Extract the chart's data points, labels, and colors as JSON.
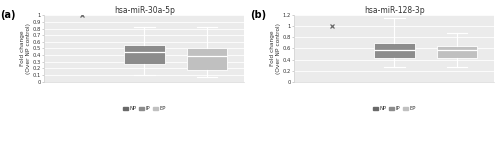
{
  "panel_a": {
    "title": "hsa-miR-30a-5p",
    "ylabel": "Fold change\n(Over NP control)",
    "ylim": [
      0,
      1.0
    ],
    "yticks": [
      0,
      0.1,
      0.2,
      0.3,
      0.4,
      0.5,
      0.6,
      0.7,
      0.8,
      0.9,
      1
    ],
    "ytick_labels": [
      "0",
      "0.1",
      "0.2",
      "0.3",
      "0.4",
      "0.5",
      "0.6",
      "0.7",
      "0.8",
      "0.9",
      "1"
    ],
    "NP": {
      "x": 1,
      "median": 1.0,
      "q1": 1.0,
      "q3": 1.0,
      "whislo": 1.0,
      "whishi": 1.0
    },
    "IP": {
      "x": 2,
      "median": 0.44,
      "q1": 0.27,
      "q3": 0.56,
      "whislo": 0.1,
      "whishi": 0.83
    },
    "EP": {
      "x": 3,
      "median": 0.39,
      "q1": 0.17,
      "q3": 0.5,
      "whislo": 0.07,
      "whishi": 0.83
    }
  },
  "panel_b": {
    "title": "hsa-miR-128-3p",
    "ylabel": "Fold change\n(Over NP control)",
    "ylim": [
      0,
      1.2
    ],
    "yticks": [
      0,
      0.2,
      0.4,
      0.6,
      0.8,
      1.0,
      1.2
    ],
    "ytick_labels": [
      "0",
      "0.2",
      "0.4",
      "0.6",
      "0.8",
      "1",
      "1.2"
    ],
    "NP": {
      "x": 1,
      "median": 1.0,
      "q1": 1.0,
      "q3": 1.0,
      "whislo": 1.0,
      "whishi": 1.0
    },
    "IP": {
      "x": 2,
      "median": 0.57,
      "q1": 0.43,
      "q3": 0.7,
      "whislo": 0.27,
      "whishi": 1.15
    },
    "EP": {
      "x": 3,
      "median": 0.57,
      "q1": 0.43,
      "q3": 0.65,
      "whislo": 0.27,
      "whishi": 0.88
    }
  },
  "color_NP": "#696969",
  "color_IP": "#8c8c8c",
  "color_EP": "#c0c0c0",
  "background": "#ebebeb",
  "grid_color": "#ffffff",
  "label_a": "(a)",
  "label_b": "(b)"
}
